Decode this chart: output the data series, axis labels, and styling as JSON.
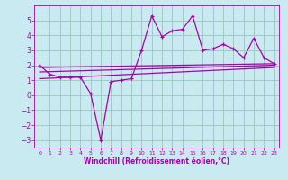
{
  "xlabel": "Windchill (Refroidissement éolien,°C)",
  "xlim": [
    -0.5,
    23.5
  ],
  "ylim": [
    -3.5,
    6.0
  ],
  "yticks": [
    -3,
    -2,
    -1,
    0,
    1,
    2,
    3,
    4,
    5
  ],
  "xticks": [
    0,
    1,
    2,
    3,
    4,
    5,
    6,
    7,
    8,
    9,
    10,
    11,
    12,
    13,
    14,
    15,
    16,
    17,
    18,
    19,
    20,
    21,
    22,
    23
  ],
  "bg_color": "#c8eaf0",
  "grid_color": "#a0ccc0",
  "line_color": "#aa00aa",
  "line1_x": [
    0,
    1,
    2,
    3,
    4,
    5,
    6,
    7,
    8,
    9,
    10,
    11,
    12,
    13,
    14,
    15,
    16,
    17,
    18,
    19,
    20,
    21,
    22,
    23
  ],
  "line1_y": [
    2.0,
    1.4,
    1.2,
    1.2,
    1.2,
    0.1,
    -3.0,
    0.9,
    1.0,
    1.1,
    3.0,
    5.3,
    3.9,
    4.3,
    4.4,
    5.3,
    3.0,
    3.1,
    3.4,
    3.1,
    2.5,
    3.8,
    2.5,
    2.1
  ],
  "line2_x": [
    0,
    23
  ],
  "line2_y": [
    1.85,
    2.1
  ],
  "line3_x": [
    0,
    23
  ],
  "line3_y": [
    1.55,
    2.0
  ],
  "line4_x": [
    0,
    23
  ],
  "line4_y": [
    1.1,
    1.85
  ],
  "xlabel_fontsize": 5.5,
  "tick_fontsize_x": 4.5,
  "tick_fontsize_y": 5.5
}
